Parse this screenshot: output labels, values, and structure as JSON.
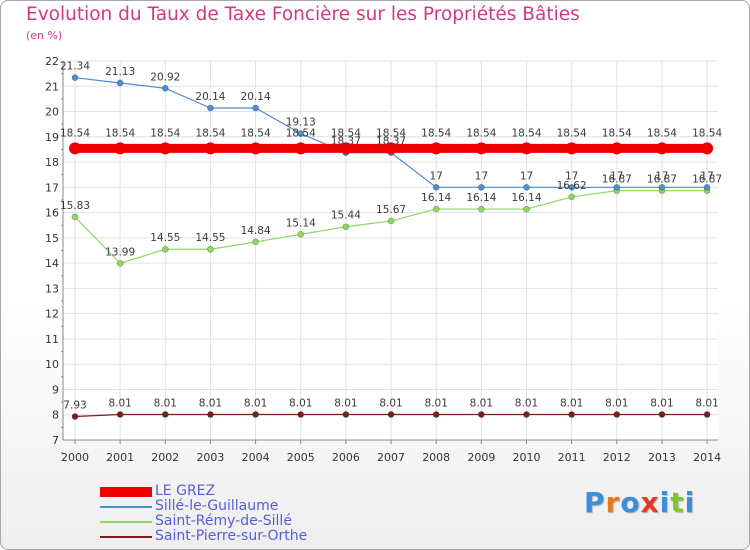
{
  "header": {
    "title": "Evolution du Taux de Taxe Foncière sur les Propriétés Bâties",
    "unit": "(en %)"
  },
  "chart_data": {
    "type": "line",
    "title": "Evolution du Taux de Taxe Foncière sur les Propriétés Bâties",
    "ylabel": "(en %)",
    "xlabel": "",
    "ylim": [
      7,
      22
    ],
    "yticks": [
      7,
      8,
      9,
      10,
      11,
      12,
      13,
      14,
      15,
      16,
      17,
      18,
      19,
      20,
      21,
      22
    ],
    "grid": true,
    "legend_position": "bottom-left",
    "categories": [
      "2000",
      "2001",
      "2002",
      "2003",
      "2004",
      "2005",
      "2006",
      "2007",
      "2008",
      "2009",
      "2010",
      "2011",
      "2012",
      "2013",
      "2014"
    ],
    "series": [
      {
        "name": "LE GREZ",
        "color": "#ee0000",
        "values": [
          18.54,
          18.54,
          18.54,
          18.54,
          18.54,
          18.54,
          18.54,
          18.54,
          18.54,
          18.54,
          18.54,
          18.54,
          18.54,
          18.54,
          18.54
        ],
        "labels": [
          "18.54",
          "18.54",
          "18.54",
          "18.54",
          "18.54",
          "18.54",
          "18.54",
          "18.54",
          "18.54",
          "18.54",
          "18.54",
          "18.54",
          "18.54",
          "18.54",
          "18.54"
        ]
      },
      {
        "name": "Sillé-le-Guillaume",
        "color": "#4a8fd0",
        "values": [
          21.34,
          21.13,
          20.92,
          20.14,
          20.14,
          19.13,
          18.37,
          18.37,
          17,
          17,
          17,
          17,
          17,
          17,
          17
        ],
        "labels": [
          "21.34",
          "21.13",
          "20.92",
          "20.14",
          "20.14",
          "19.13",
          "18.37",
          "18.37",
          "17",
          "17",
          "17",
          "17",
          "17",
          "17",
          "17"
        ]
      },
      {
        "name": "Saint-Rémy-de-Sillé",
        "color": "#90d860",
        "values": [
          15.83,
          13.99,
          14.55,
          14.55,
          14.84,
          15.14,
          15.44,
          15.67,
          16.14,
          16.14,
          16.14,
          16.62,
          16.87,
          16.87,
          16.87
        ],
        "labels": [
          "15.83",
          "13.99",
          "14.55",
          "14.55",
          "14.84",
          "15.14",
          "15.44",
          "15.67",
          "16.14",
          "16.14",
          "16.14",
          "16.62",
          "16.87",
          "16.87",
          "16.87"
        ]
      },
      {
        "name": "Saint-Pierre-sur-Orthe",
        "color": "#7a1f1f",
        "values": [
          7.93,
          8.01,
          8.01,
          8.01,
          8.01,
          8.01,
          8.01,
          8.01,
          8.01,
          8.01,
          8.01,
          8.01,
          8.01,
          8.01,
          8.01
        ],
        "labels": [
          "7.93",
          "8.01",
          "8.01",
          "8.01",
          "8.01",
          "8.01",
          "8.01",
          "8.01",
          "8.01",
          "8.01",
          "8.01",
          "8.01",
          "8.01",
          "8.01",
          "8.01"
        ]
      }
    ]
  },
  "legend": {
    "items": [
      "LE GREZ",
      "Sillé-le-Guillaume",
      "Saint-Rémy-de-Sillé",
      "Saint-Pierre-sur-Orthe"
    ]
  },
  "logo": {
    "text": "Proxiti",
    "letter_colors": [
      "#3a8fd8",
      "#e07a20",
      "#3a8fd8",
      "#e03a2a",
      "#3a8fd8",
      "#7cc830",
      "#3a8fd8"
    ]
  }
}
